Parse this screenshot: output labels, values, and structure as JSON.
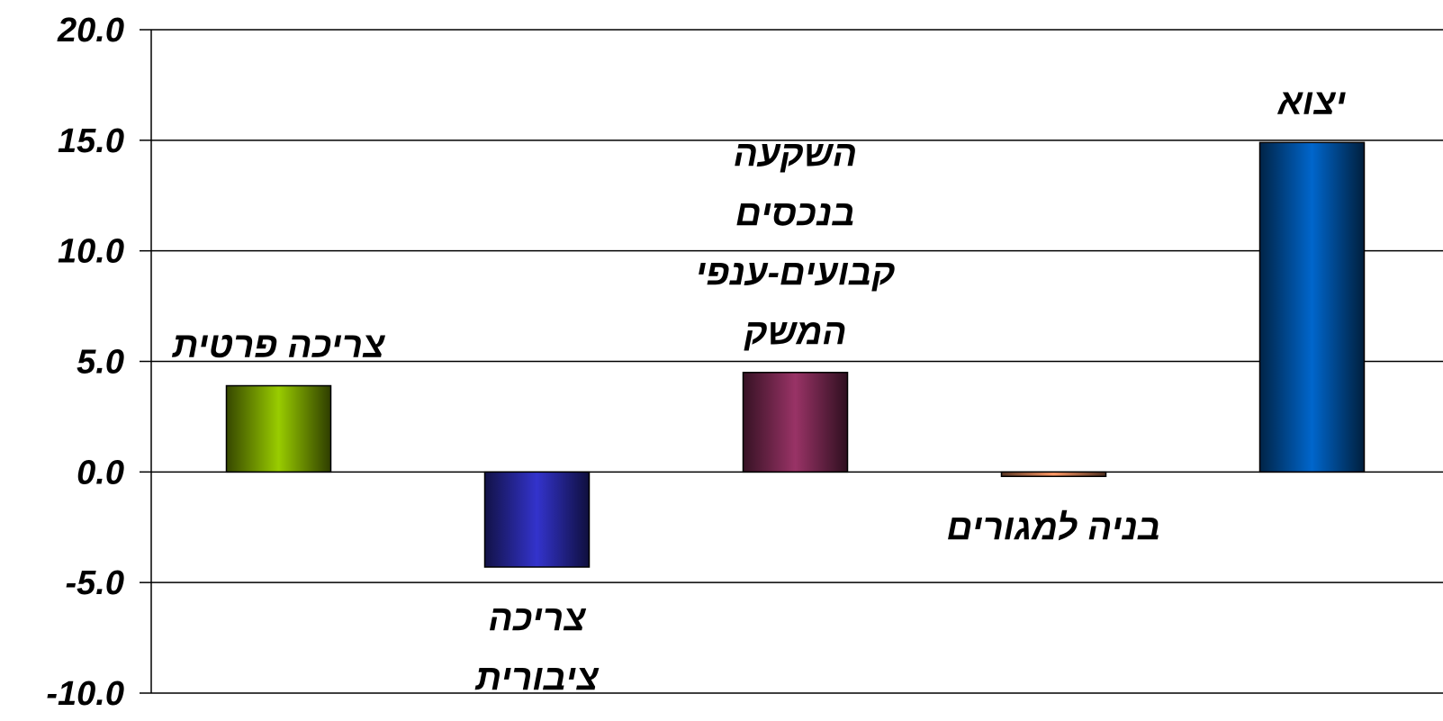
{
  "chart_data": {
    "type": "bar",
    "title": "",
    "xlabel": "",
    "ylabel": "",
    "ylim": [
      -10,
      20
    ],
    "yticks": [
      20,
      15,
      10,
      5,
      0,
      -5,
      -10
    ],
    "ytick_labels": [
      "20.0",
      "15.0",
      "10.0",
      "5.0",
      "0.0",
      "-5.0",
      "-10.0"
    ],
    "grid": true,
    "legend": "none",
    "categories": [
      {
        "lines": [
          "צריכה פרטית"
        ],
        "value": 3.9,
        "color": "#99cc00",
        "label_position": "above"
      },
      {
        "lines": [
          "צריכה",
          "ציבורית"
        ],
        "value": -4.3,
        "color": "#3333cc",
        "label_position": "below"
      },
      {
        "lines": [
          "השקעה",
          "בנכסים",
          "קבועים-ענפי",
          "המשק"
        ],
        "value": 4.5,
        "color": "#993366",
        "label_position": "above"
      },
      {
        "lines": [
          "בניה למגורים"
        ],
        "value": -0.2,
        "color": "#ff9966",
        "label_position": "below"
      },
      {
        "lines": [
          "יצוא"
        ],
        "value": 14.9,
        "color": "#0066cc",
        "label_position": "above"
      }
    ]
  }
}
